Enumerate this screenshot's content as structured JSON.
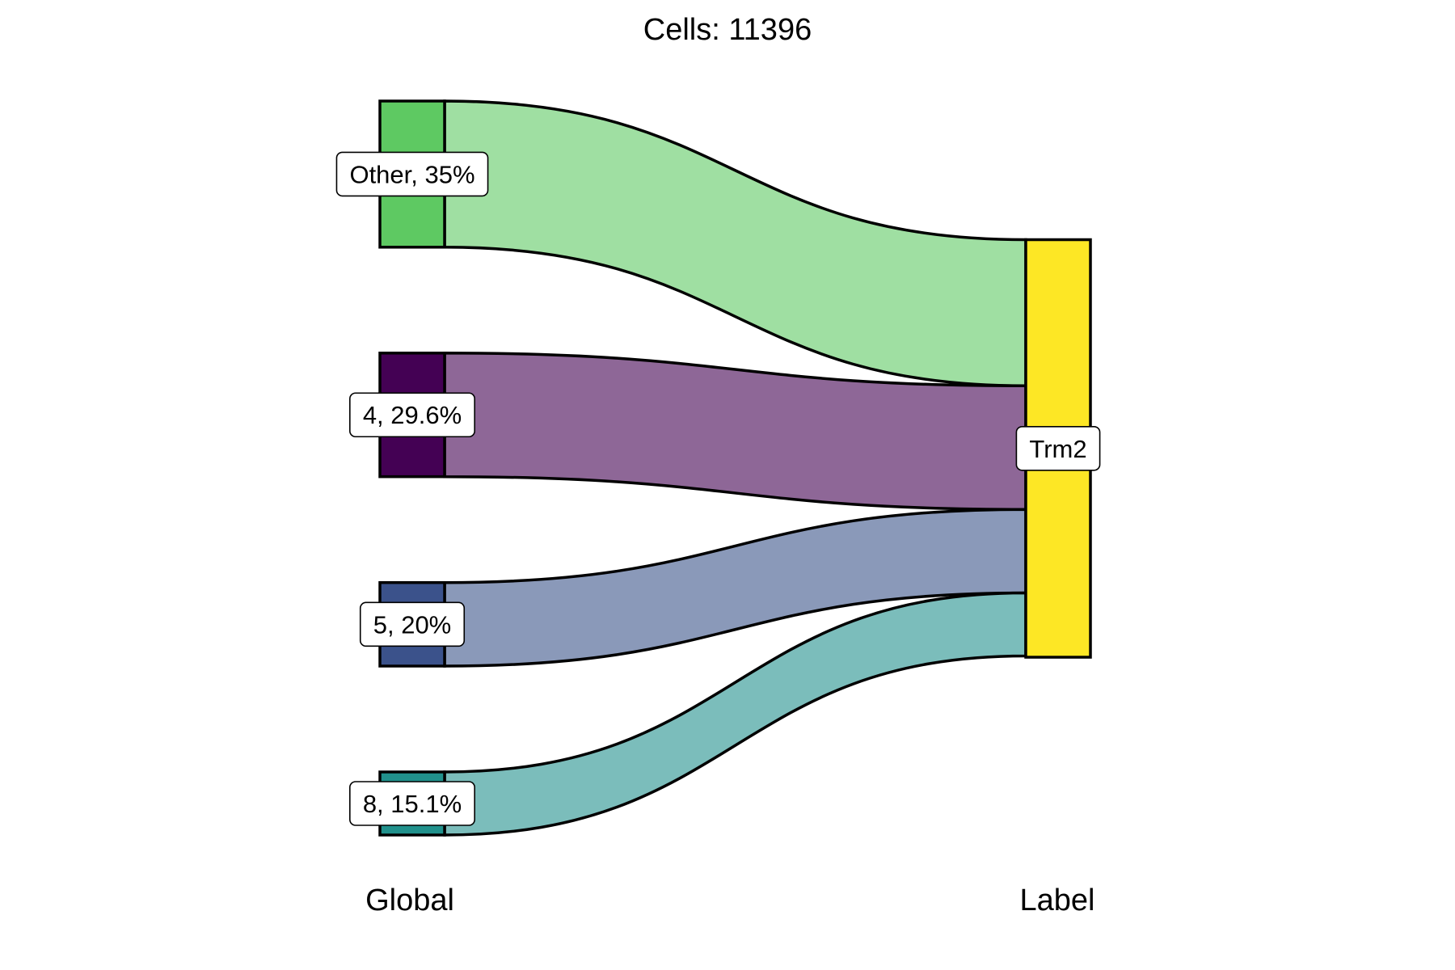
{
  "chart_data": {
    "type": "sankey",
    "title": "Cells:  11396",
    "axes": [
      "Global",
      "Label"
    ],
    "nodes_left": [
      {
        "name": "Other",
        "label": "Other, 35%",
        "percent": 35.0,
        "color": "#5ec962",
        "flow_color": "#9fdfa2"
      },
      {
        "name": "4",
        "label": "4, 29.6%",
        "percent": 29.6,
        "color": "#440154",
        "flow_color": "#8e6797"
      },
      {
        "name": "5",
        "label": "5, 20%",
        "percent": 20.0,
        "color": "#3b528b",
        "flow_color": "#8a99b9"
      },
      {
        "name": "8",
        "label": "8, 15.1%",
        "percent": 15.1,
        "color": "#21918c",
        "flow_color": "#7bbdbb"
      }
    ],
    "nodes_right": [
      {
        "name": "Trm2",
        "label": "Trm2",
        "percent": 100.0,
        "color": "#fde725"
      }
    ]
  }
}
